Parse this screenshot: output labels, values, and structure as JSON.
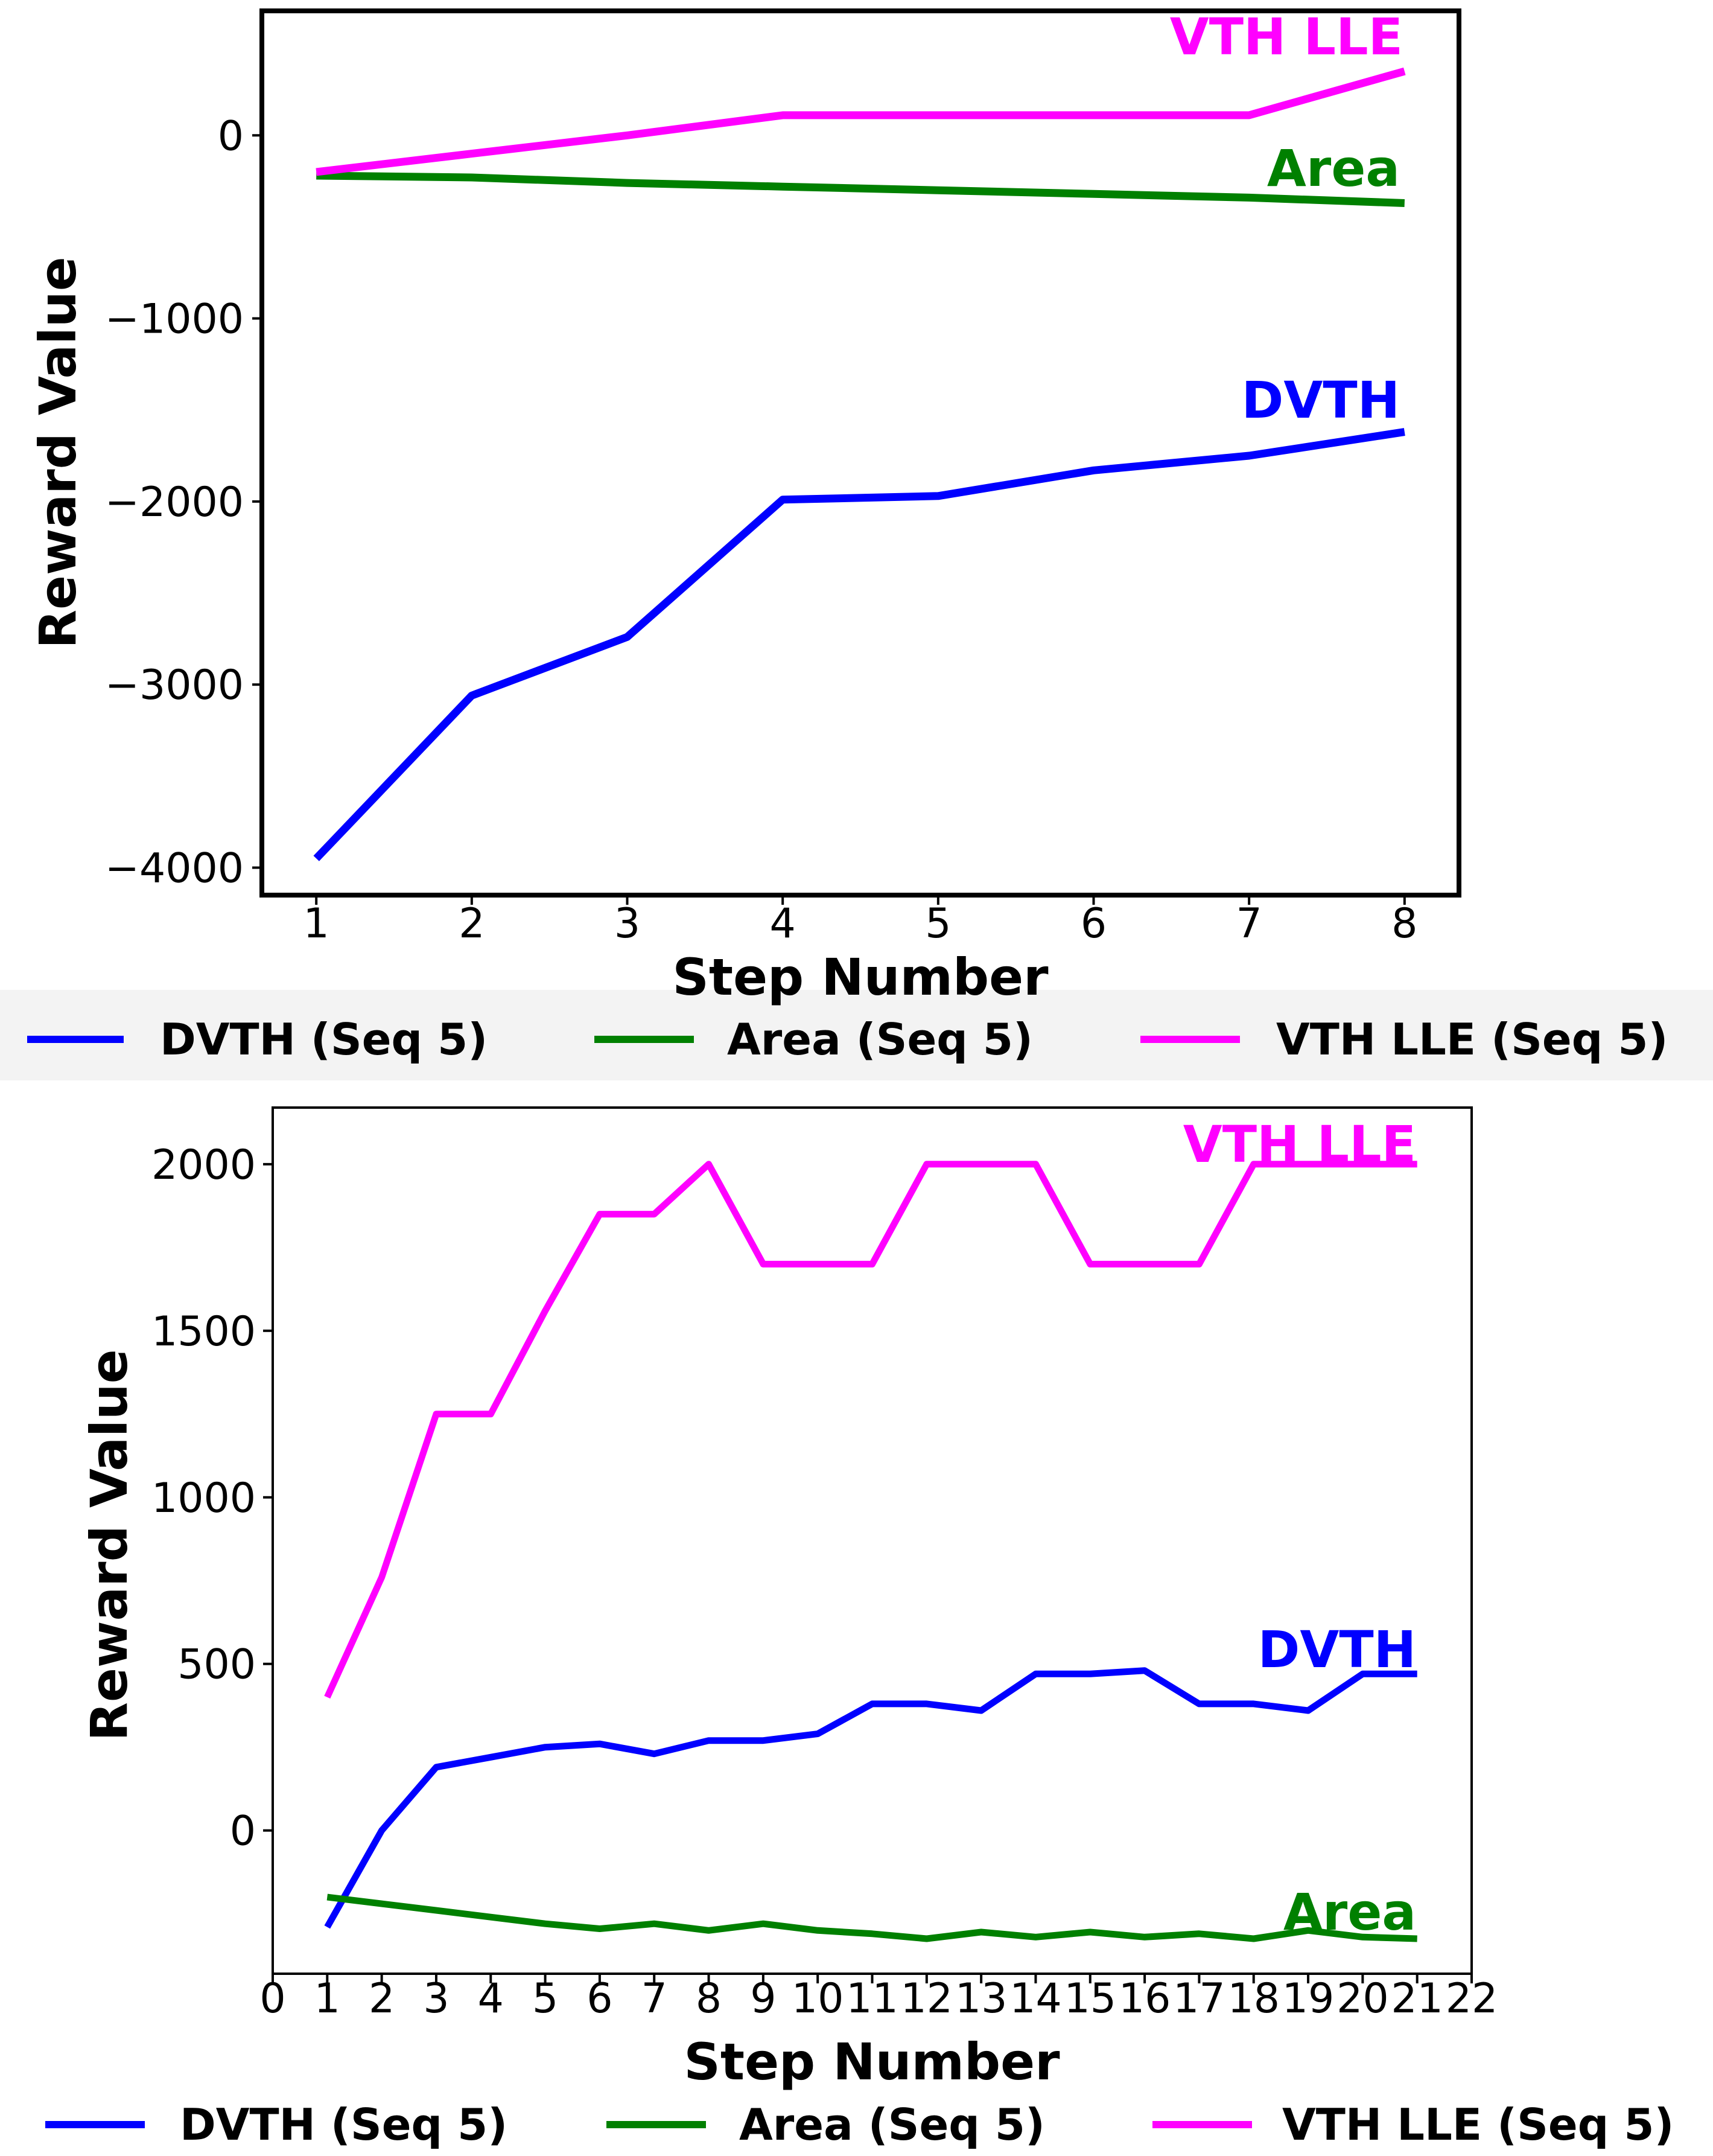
{
  "chart_data": [
    {
      "type": "line",
      "xlabel": "Step Number",
      "ylabel": "Reward Value",
      "xlim": [
        0.65,
        8.35
      ],
      "ylim": [
        -4150,
        680
      ],
      "x_ticks": [
        1,
        2,
        3,
        4,
        5,
        6,
        7,
        8
      ],
      "y_ticks": [
        0,
        -1000,
        -2000,
        -3000,
        -4000
      ],
      "y_tick_labels": [
        "0",
        "−1000",
        "−2000",
        "−3000",
        "−4000"
      ],
      "grid": false,
      "legend_position": "below",
      "x": [
        1,
        2,
        3,
        4,
        5,
        6,
        7,
        8
      ],
      "series": [
        {
          "name": "DVTH (Seq 5)",
          "color": "#0000ff",
          "label": "DVTH",
          "values": [
            -3950,
            -3060,
            -2740,
            -1990,
            -1970,
            -1830,
            -1750,
            -1620
          ]
        },
        {
          "name": "Area (Seq 5)",
          "color": "#008000",
          "label": "Area",
          "values": [
            -220,
            -230,
            -260,
            -280,
            -300,
            -320,
            -340,
            -370
          ]
        },
        {
          "name": "VTH LLE (Seq 5)",
          "color": "#ff00ff",
          "label": "VTH LLE",
          "values": [
            -200,
            -100,
            0,
            110,
            110,
            110,
            110,
            350
          ]
        }
      ]
    },
    {
      "type": "line",
      "xlabel": "Step Number",
      "ylabel": "Reward Value",
      "xlim": [
        0,
        22
      ],
      "ylim": [
        -430,
        2170
      ],
      "x_ticks": [
        0,
        1,
        2,
        3,
        4,
        5,
        6,
        7,
        8,
        9,
        10,
        11,
        12,
        13,
        14,
        15,
        16,
        17,
        18,
        19,
        20,
        21,
        22
      ],
      "y_ticks": [
        0,
        500,
        1000,
        1500,
        2000
      ],
      "grid": false,
      "legend_position": "below",
      "x": [
        1,
        2,
        3,
        4,
        5,
        6,
        7,
        8,
        9,
        10,
        11,
        12,
        13,
        14,
        15,
        16,
        17,
        18,
        19,
        20,
        21
      ],
      "series": [
        {
          "name": "DVTH (Seq 5)",
          "color": "#0000ff",
          "label": "DVTH",
          "values": [
            -290,
            0,
            190,
            220,
            250,
            260,
            230,
            270,
            270,
            290,
            380,
            380,
            360,
            470,
            470,
            480,
            380,
            380,
            360,
            470,
            470
          ]
        },
        {
          "name": "Area (Seq 5)",
          "color": "#008000",
          "label": "Area",
          "values": [
            -200,
            -220,
            -240,
            -260,
            -280,
            -295,
            -280,
            -300,
            -280,
            -300,
            -310,
            -325,
            -305,
            -320,
            -305,
            -320,
            -310,
            -325,
            -300,
            -320,
            -325
          ]
        },
        {
          "name": "VTH LLE (Seq 5)",
          "color": "#ff00ff",
          "label": "VTH LLE",
          "values": [
            400,
            760,
            1250,
            1250,
            1560,
            1850,
            1850,
            2000,
            1700,
            1700,
            1700,
            2000,
            2000,
            2000,
            1700,
            1700,
            1700,
            2000,
            2000,
            2000,
            2000
          ]
        }
      ]
    }
  ]
}
